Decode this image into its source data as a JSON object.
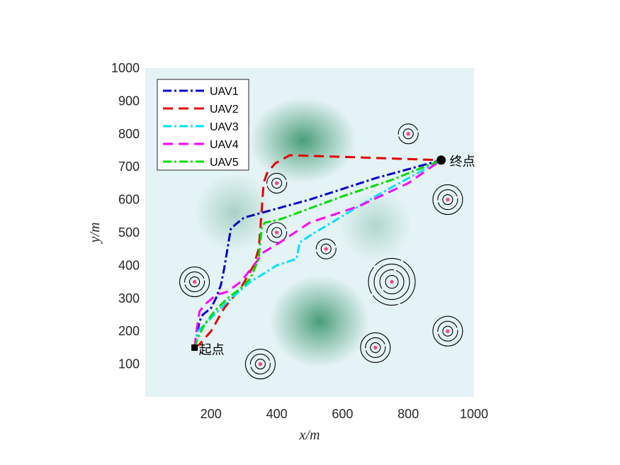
{
  "chart_data": {
    "type": "line",
    "title": "",
    "xlabel": "x/m",
    "ylabel": "y/m",
    "xlim": [
      0,
      1000
    ],
    "ylim": [
      0,
      1000
    ],
    "xticks": [
      200,
      400,
      600,
      800,
      1000
    ],
    "yticks": [
      100,
      200,
      300,
      400,
      500,
      600,
      700,
      800,
      900,
      1000
    ],
    "legend_position": "top-left",
    "start": {
      "label": "起点",
      "x": 150,
      "y": 150
    },
    "end": {
      "label": "终点",
      "x": 900,
      "y": 720
    },
    "series": [
      {
        "name": "UAV1",
        "color": "#0000cc",
        "dash": "dashdot",
        "x": [
          150,
          165,
          175,
          200,
          215,
          230,
          240,
          250,
          260,
          275,
          300,
          500,
          700,
          900
        ],
        "y": [
          150,
          230,
          250,
          270,
          300,
          340,
          390,
          450,
          510,
          525,
          545,
          600,
          665,
          720
        ]
      },
      {
        "name": "UAV2",
        "color": "#e60000",
        "dash": "dashed",
        "x": [
          150,
          165,
          200,
          240,
          290,
          330,
          345,
          350,
          355,
          360,
          370,
          395,
          440,
          600,
          900
        ],
        "y": [
          150,
          160,
          200,
          270,
          330,
          400,
          450,
          510,
          580,
          650,
          680,
          710,
          735,
          730,
          720
        ]
      },
      {
        "name": "UAV3",
        "color": "#00e0ff",
        "dash": "dashdot",
        "x": [
          150,
          160,
          200,
          250,
          320,
          400,
          460,
          470,
          500,
          700,
          900
        ],
        "y": [
          150,
          200,
          240,
          290,
          350,
          400,
          420,
          470,
          490,
          610,
          720
        ]
      },
      {
        "name": "UAV4",
        "color": "#ff00ff",
        "dash": "dashed",
        "x": [
          150,
          155,
          165,
          180,
          215,
          250,
          290,
          330,
          360,
          410,
          500,
          650,
          800,
          900
        ],
        "y": [
          150,
          195,
          260,
          280,
          310,
          320,
          350,
          400,
          440,
          470,
          530,
          580,
          650,
          720
        ]
      },
      {
        "name": "UAV5",
        "color": "#00dd00",
        "dash": "dashdot",
        "x": [
          150,
          160,
          180,
          210,
          250,
          290,
          320,
          345,
          355,
          365,
          410,
          600,
          750,
          900
        ],
        "y": [
          150,
          180,
          220,
          260,
          300,
          330,
          360,
          420,
          520,
          530,
          540,
          610,
          660,
          720
        ]
      }
    ],
    "threats": [
      {
        "x": 150,
        "y": 350,
        "rings": 3
      },
      {
        "x": 350,
        "y": 100,
        "rings": 3
      },
      {
        "x": 400,
        "y": 650,
        "rings": 2
      },
      {
        "x": 400,
        "y": 500,
        "rings": 2
      },
      {
        "x": 550,
        "y": 450,
        "rings": 2
      },
      {
        "x": 700,
        "y": 150,
        "rings": 3
      },
      {
        "x": 750,
        "y": 350,
        "rings": 4
      },
      {
        "x": 800,
        "y": 800,
        "rings": 2
      },
      {
        "x": 920,
        "y": 600,
        "rings": 3
      },
      {
        "x": 920,
        "y": 200,
        "rings": 3
      }
    ],
    "terrain_peaks": [
      {
        "x": 480,
        "y": 780
      },
      {
        "x": 530,
        "y": 230
      },
      {
        "x": 270,
        "y": 560
      },
      {
        "x": 700,
        "y": 520
      }
    ],
    "colors": {
      "background": "#e4f3f5",
      "peak": "#2f8f63",
      "threat_dot": "#ff3b8d",
      "threat_ring": "#000000"
    }
  }
}
